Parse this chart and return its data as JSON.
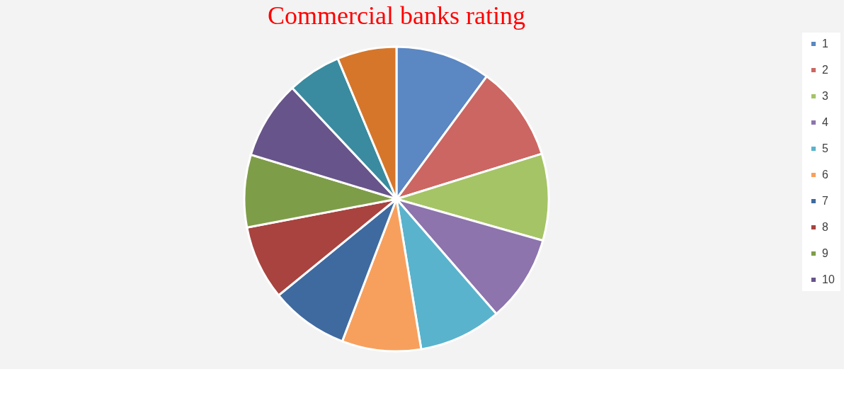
{
  "chart_data": {
    "type": "pie",
    "title": "Commercial banks rating",
    "categories": [
      "1",
      "2",
      "3",
      "4",
      "5",
      "6",
      "7",
      "8",
      "9",
      "10",
      null,
      null
    ],
    "values": [
      10.1,
      10.1,
      9.2,
      9.2,
      8.8,
      8.4,
      8.3,
      7.9,
      7.7,
      8.3,
      5.7,
      6.3
    ],
    "colors": [
      "#5b87c2",
      "#cc6662",
      "#a5c466",
      "#8d74ad",
      "#5ab3cc",
      "#f7a05e",
      "#3f6aa0",
      "#a8433f",
      "#7e9d49",
      "#67548a",
      "#3a8b9f",
      "#d6762a"
    ],
    "legend": "right"
  }
}
